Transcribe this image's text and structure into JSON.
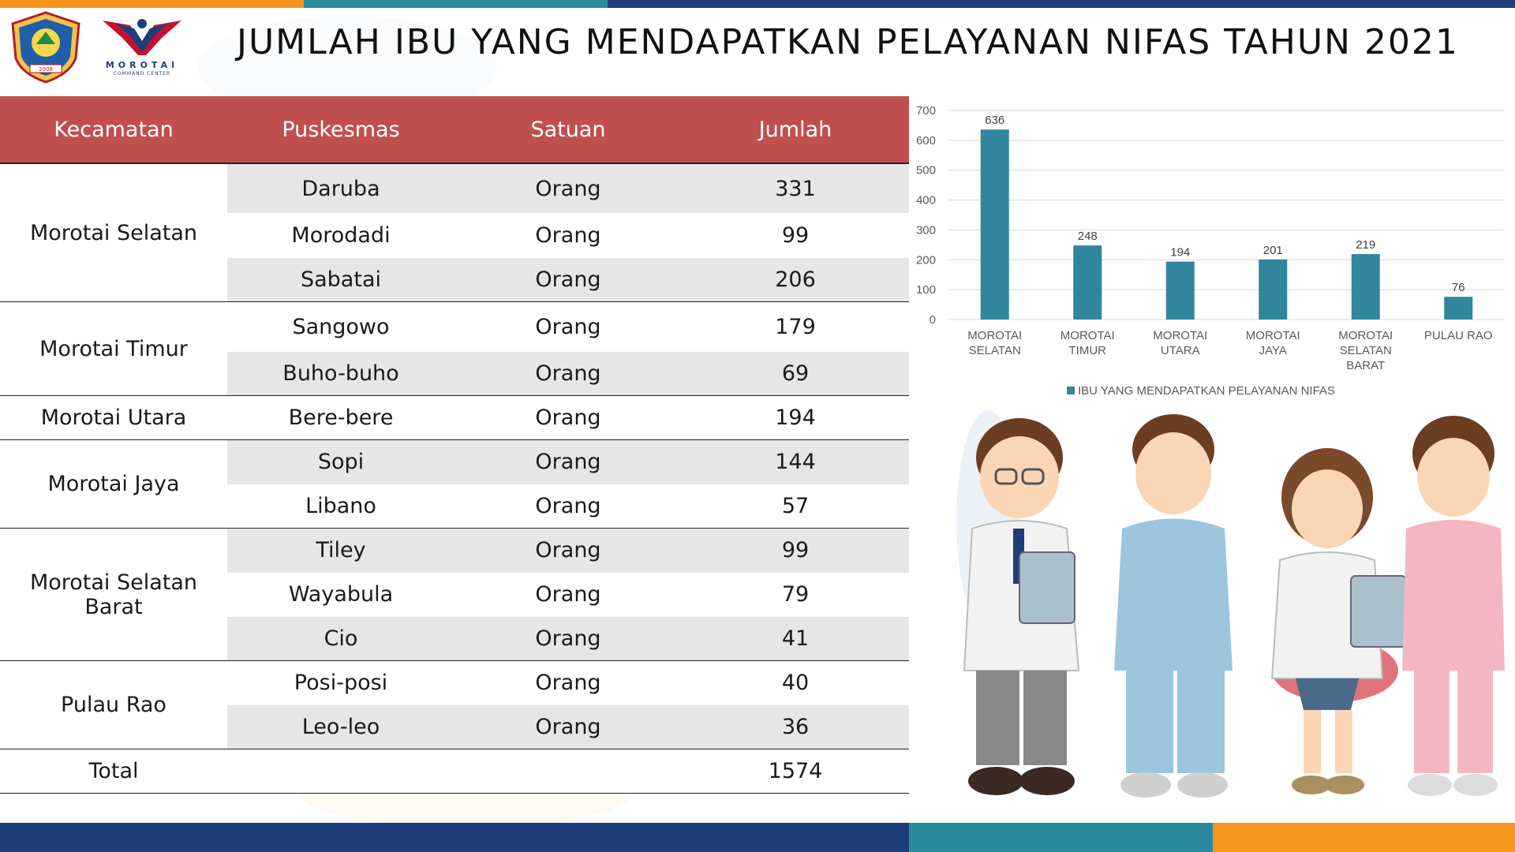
{
  "page": {
    "title": "JUMLAH IBU YANG MENDAPATKAN PELAYANAN NIFAS TAHUN 2021"
  },
  "logos": {
    "left_emblem": "emblem",
    "command_center_name": "MOROTAI",
    "command_center_sub": "COMMAND CENTER",
    "emblem_year": "2008"
  },
  "colors": {
    "header_red": "#c0504d",
    "bar_teal": "#31859c",
    "row_grey": "#e6e6e6",
    "band_navy": "#1f3d7a",
    "band_teal": "#2a8a9e",
    "band_orange": "#f7941d"
  },
  "table": {
    "headers": [
      "Kecamatan",
      "Puskesmas",
      "Satuan",
      "Jumlah"
    ],
    "groups": [
      {
        "kecamatan": "Morotai Selatan",
        "rows": [
          {
            "puskesmas": "Daruba",
            "satuan": "Orang",
            "jumlah": "331"
          },
          {
            "puskesmas": "Morodadi",
            "satuan": "Orang",
            "jumlah": "99"
          },
          {
            "puskesmas": "Sabatai",
            "satuan": "Orang",
            "jumlah": "206"
          }
        ]
      },
      {
        "kecamatan": "Morotai Timur",
        "rows": [
          {
            "puskesmas": "Sangowo",
            "satuan": "Orang",
            "jumlah": "179"
          },
          {
            "puskesmas": "Buho-buho",
            "satuan": "Orang",
            "jumlah": "69"
          }
        ]
      },
      {
        "kecamatan": "Morotai Utara",
        "rows": [
          {
            "puskesmas": "Bere-bere",
            "satuan": "Orang",
            "jumlah": "194"
          }
        ]
      },
      {
        "kecamatan": "Morotai Jaya",
        "rows": [
          {
            "puskesmas": "Sopi",
            "satuan": "Orang",
            "jumlah": "144"
          },
          {
            "puskesmas": "Libano",
            "satuan": "Orang",
            "jumlah": "57"
          }
        ]
      },
      {
        "kecamatan": "Morotai Selatan Barat",
        "rows": [
          {
            "puskesmas": "Tiley",
            "satuan": "Orang",
            "jumlah": "99"
          },
          {
            "puskesmas": "Wayabula",
            "satuan": "Orang",
            "jumlah": "79"
          },
          {
            "puskesmas": "Cio",
            "satuan": "Orang",
            "jumlah": "41"
          }
        ]
      },
      {
        "kecamatan": "Pulau Rao",
        "rows": [
          {
            "puskesmas": "Posi-posi",
            "satuan": "Orang",
            "jumlah": "40"
          },
          {
            "puskesmas": "Leo-leo",
            "satuan": "Orang",
            "jumlah": "36"
          }
        ]
      }
    ],
    "total": {
      "label": "Total",
      "jumlah": "1574"
    }
  },
  "chart_data": {
    "type": "bar",
    "categories": [
      [
        "MOROTAI",
        "SELATAN"
      ],
      [
        "MOROTAI",
        "TIMUR"
      ],
      [
        "MOROTAI",
        "UTARA"
      ],
      [
        "MOROTAI",
        "JAYA"
      ],
      [
        "MOROTAI",
        "SELATAN",
        "BARAT"
      ],
      [
        "PULAU RAO"
      ]
    ],
    "series": [
      {
        "name": "IBU YANG MENDAPATKAN PELAYANAN NIFAS",
        "values": [
          636,
          248,
          194,
          201,
          219,
          76
        ]
      }
    ],
    "yticks": [
      0,
      100,
      200,
      300,
      400,
      500,
      600,
      700
    ],
    "ylim": [
      0,
      700
    ],
    "grid": true,
    "legend_position": "bottom",
    "data_labels": true,
    "title": "",
    "xlabel": "",
    "ylabel": ""
  },
  "illustration": {
    "figures": [
      "doctor-male",
      "nurse-male",
      "doctor-female",
      "nurse-female"
    ]
  }
}
